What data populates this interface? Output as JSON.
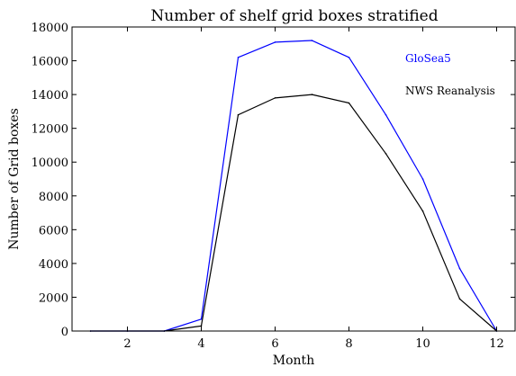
{
  "chart_data": {
    "type": "line",
    "title": "Number of shelf grid boxes stratified",
    "xlabel": "Month",
    "ylabel": "Number of Grid boxes",
    "xlim": [
      0.5,
      12.5
    ],
    "ylim": [
      0,
      18000
    ],
    "xticks": [
      2,
      4,
      6,
      8,
      10,
      12
    ],
    "yticks": [
      0,
      2000,
      4000,
      6000,
      8000,
      10000,
      12000,
      14000,
      16000,
      18000
    ],
    "x": [
      1,
      2,
      3,
      4,
      5,
      6,
      7,
      8,
      9,
      10,
      11,
      12
    ],
    "series": [
      {
        "name": "GloSea5",
        "color": "#0000ff",
        "values": [
          0,
          0,
          0,
          700,
          16200,
          17100,
          17200,
          16200,
          12800,
          9000,
          3700,
          0
        ]
      },
      {
        "name": "NWS Reanalysis",
        "color": "#000000",
        "values": [
          0,
          0,
          0,
          300,
          12800,
          13800,
          14000,
          13500,
          10500,
          7100,
          1900,
          0
        ]
      }
    ],
    "grid": false,
    "legend": "top-right"
  }
}
